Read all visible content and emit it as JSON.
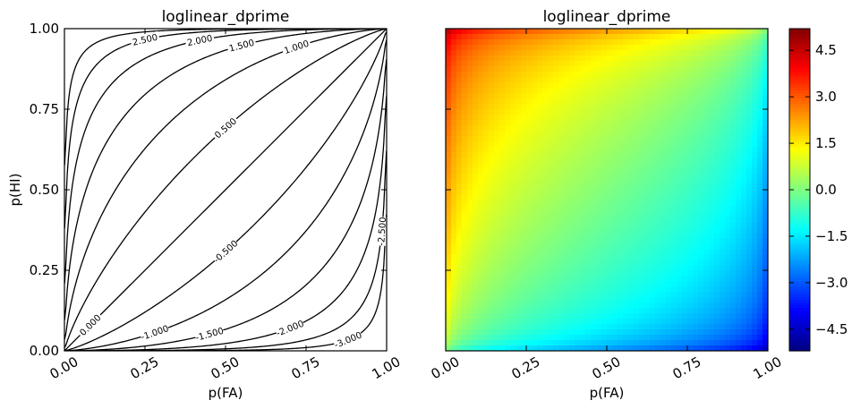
{
  "chart_data": [
    {
      "type": "contour",
      "title": "loglinear_dprime",
      "xlabel": "p(FA)",
      "ylabel": "p(HI)",
      "xlim": [
        0,
        1
      ],
      "ylim": [
        0,
        1
      ],
      "xticks": [
        "0.00",
        "0.25",
        "0.50",
        "0.75",
        "1.00"
      ],
      "yticks": [
        "0.00",
        "0.25",
        "0.50",
        "0.75",
        "1.00"
      ],
      "levels": [
        -3.0,
        -2.5,
        -2.0,
        -1.5,
        -1.0,
        -0.5,
        0.0,
        0.5,
        1.0,
        1.5,
        2.0,
        2.5,
        3.0
      ],
      "level_labels": [
        "-3.000",
        "-2.500",
        "-2.000",
        "-1.500",
        "-1.000",
        "-0.500",
        "0.000",
        "0.500",
        "1.000",
        "1.500",
        "2.000",
        "2.500",
        "3.000"
      ],
      "line_color": "#000000",
      "grid": false
    },
    {
      "type": "heatmap",
      "title": "loglinear_dprime",
      "xlabel": "p(FA)",
      "ylabel": "",
      "xlim": [
        0,
        1
      ],
      "ylim": [
        0,
        1
      ],
      "xticks": [
        "0.00",
        "0.25",
        "0.50",
        "0.75",
        "1.00"
      ],
      "colormap": "jet",
      "colorbar": {
        "range": [
          -5.2,
          5.2
        ],
        "ticks": [
          "4.5",
          "3.0",
          "1.5",
          "0.0",
          "−1.5",
          "−3.0",
          "−4.5"
        ],
        "tick_values": [
          4.5,
          3.0,
          1.5,
          0.0,
          -1.5,
          -3.0,
          -4.5
        ],
        "placement": "right"
      },
      "grid": false
    }
  ]
}
